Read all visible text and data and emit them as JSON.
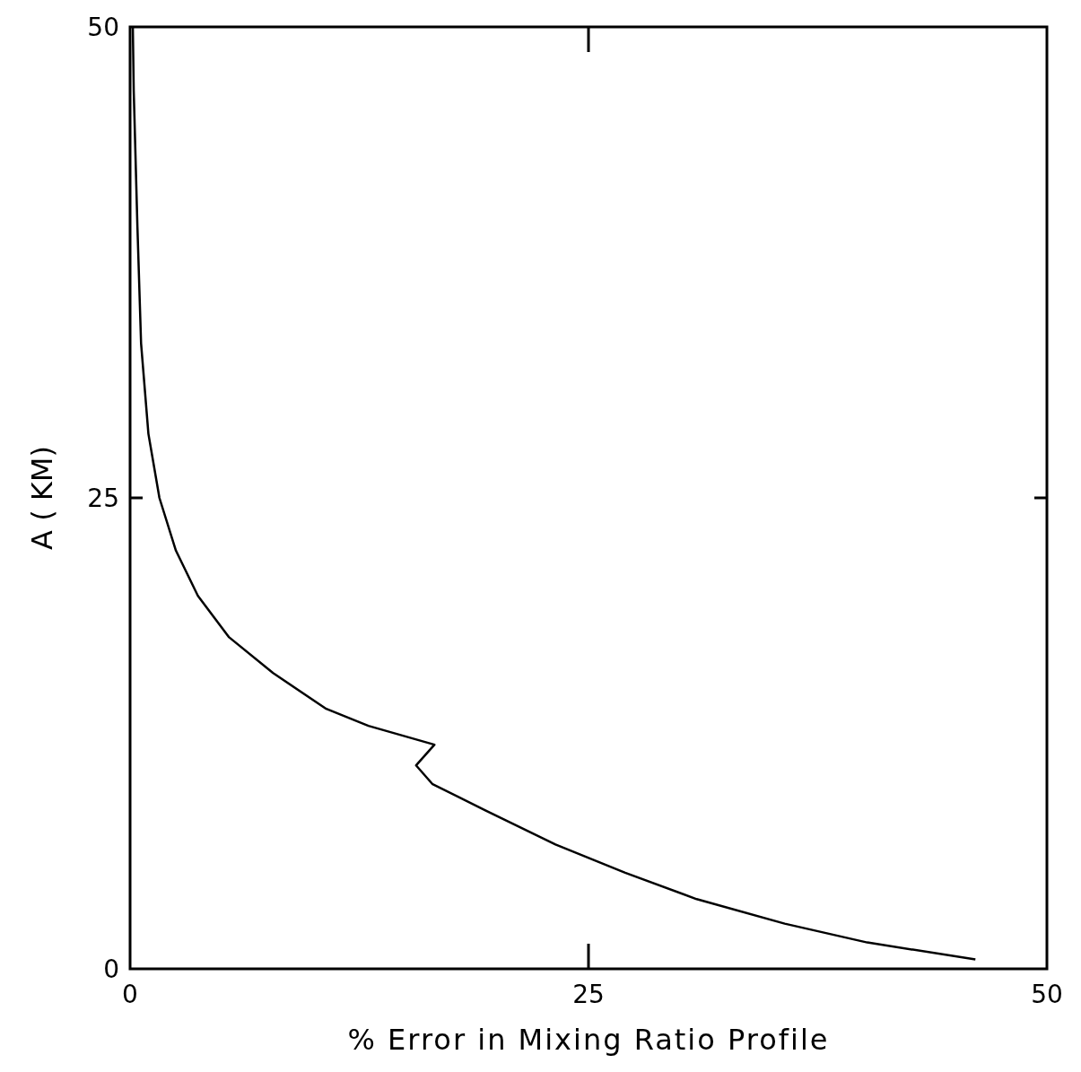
{
  "chart_data": {
    "type": "line",
    "xlabel": "% Error in Mixing Ratio Profile",
    "ylabel": "A ( KM)",
    "xlim": [
      0,
      50
    ],
    "ylim": [
      0,
      50
    ],
    "xticks": [
      0,
      25,
      50
    ],
    "yticks": [
      0,
      25,
      50
    ],
    "grid": false,
    "marker": "none",
    "line_style": "solid",
    "series": [
      {
        "color": "#000000",
        "x": [
          0.15,
          0.2,
          0.4,
          0.6,
          1.0,
          1.6,
          2.5,
          3.7,
          5.4,
          7.8,
          10.7,
          13.0,
          16.6,
          15.6,
          16.5,
          19.4,
          23.2,
          27.0,
          30.9,
          35.7,
          40.2,
          46.1
        ],
        "values": [
          50,
          46.6,
          39.4,
          33.2,
          28.4,
          25.0,
          22.2,
          19.8,
          17.6,
          15.7,
          13.8,
          12.9,
          11.9,
          10.8,
          9.8,
          8.4,
          6.6,
          5.1,
          3.7,
          2.4,
          1.4,
          0.5
        ]
      }
    ]
  }
}
